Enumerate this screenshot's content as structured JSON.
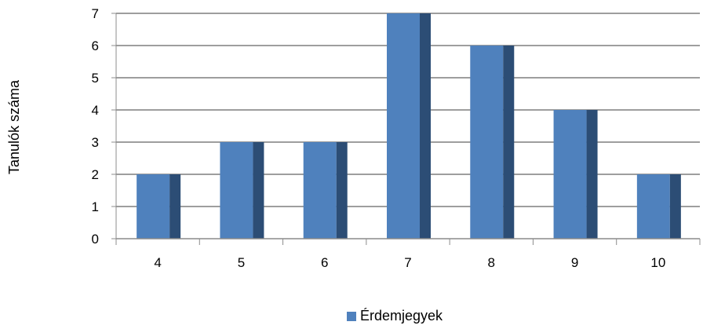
{
  "chart_data": {
    "type": "bar",
    "categories": [
      "4",
      "5",
      "6",
      "7",
      "8",
      "9",
      "10"
    ],
    "series": [
      {
        "name": "Érdemjegyek",
        "values": [
          2,
          3,
          3,
          7,
          6,
          4,
          2
        ],
        "color": "#4f81bd",
        "side_color": "#2c4d75"
      }
    ],
    "ylabel": "Tanulók száma",
    "ylim": [
      0,
      7
    ],
    "yticks": [
      "0",
      "1",
      "2",
      "3",
      "4",
      "5",
      "6",
      "7"
    ],
    "grid": true,
    "gridline_color": "#9e9e9e",
    "axis_color": "#8c8c8c",
    "legend_position": "bottom",
    "legend_label": "Érdemjegyek"
  }
}
